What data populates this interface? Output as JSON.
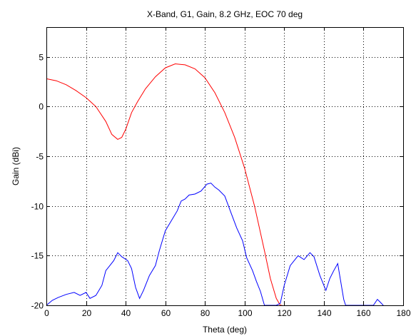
{
  "chart_data": {
    "type": "line",
    "title": "X-Band, G1, Gain, 8.2 GHz, EOC 70 deg",
    "xlabel": "Theta (deg)",
    "ylabel": "Gain (dBi)",
    "xlim": [
      0,
      180
    ],
    "ylim": [
      -20,
      8
    ],
    "xticks": [
      0,
      20,
      40,
      60,
      80,
      100,
      120,
      140,
      160,
      180
    ],
    "yticks": [
      -20,
      -15,
      -10,
      -5,
      0,
      5
    ],
    "grid": true,
    "legend": "none",
    "series": [
      {
        "color": "#ff0000",
        "x": [
          0,
          5,
          10,
          15,
          20,
          25,
          30,
          33,
          36,
          38,
          40,
          43,
          46,
          50,
          55,
          60,
          65,
          70,
          75,
          80,
          85,
          90,
          95,
          100,
          105,
          110,
          113,
          116,
          118,
          119
        ],
        "y": [
          2.8,
          2.6,
          2.2,
          1.6,
          0.9,
          0.0,
          -1.5,
          -2.8,
          -3.3,
          -3.1,
          -2.3,
          -0.6,
          0.5,
          1.8,
          3.0,
          3.9,
          4.3,
          4.2,
          3.8,
          2.9,
          1.4,
          -0.6,
          -3.1,
          -6.2,
          -10.0,
          -14.5,
          -17.3,
          -19.3,
          -20.0,
          -20.0
        ]
      },
      {
        "color": "#0000ff",
        "x": [
          0,
          3,
          6,
          10,
          14,
          17,
          20,
          22,
          25,
          28,
          30,
          32,
          34,
          36,
          38,
          41,
          43,
          45,
          47,
          49,
          52,
          55,
          57,
          60,
          63,
          66,
          68,
          70,
          72,
          75,
          78,
          81,
          83,
          85,
          87,
          90,
          93,
          96,
          99,
          101,
          104,
          106,
          108,
          110,
          112,
          114,
          116,
          118,
          120,
          123,
          127,
          130,
          133,
          135,
          138,
          141,
          143,
          145,
          147,
          150,
          151,
          153,
          155,
          158,
          160,
          163,
          165,
          167,
          168,
          170
        ],
        "y": [
          -20.0,
          -19.5,
          -19.2,
          -18.9,
          -18.7,
          -19.0,
          -18.7,
          -19.3,
          -19.0,
          -18.0,
          -16.5,
          -16.0,
          -15.5,
          -14.7,
          -15.1,
          -15.5,
          -16.3,
          -18.2,
          -19.3,
          -18.5,
          -17.0,
          -16.0,
          -14.5,
          -12.5,
          -11.5,
          -10.5,
          -9.5,
          -9.3,
          -8.9,
          -8.8,
          -8.5,
          -7.8,
          -7.7,
          -8.1,
          -8.4,
          -9.0,
          -10.6,
          -12.2,
          -13.5,
          -15.2,
          -16.5,
          -17.6,
          -18.6,
          -20.0,
          -20.0,
          -20.0,
          -20.0,
          -19.8,
          -18.0,
          -16.0,
          -15.0,
          -15.4,
          -14.7,
          -15.1,
          -17.0,
          -18.5,
          -17.3,
          -16.5,
          -15.8,
          -19.4,
          -20.0,
          -20.0,
          -20.0,
          -20.0,
          -20.0,
          -20.0,
          -20.0,
          -19.4,
          -19.6,
          -20.0
        ]
      }
    ]
  }
}
